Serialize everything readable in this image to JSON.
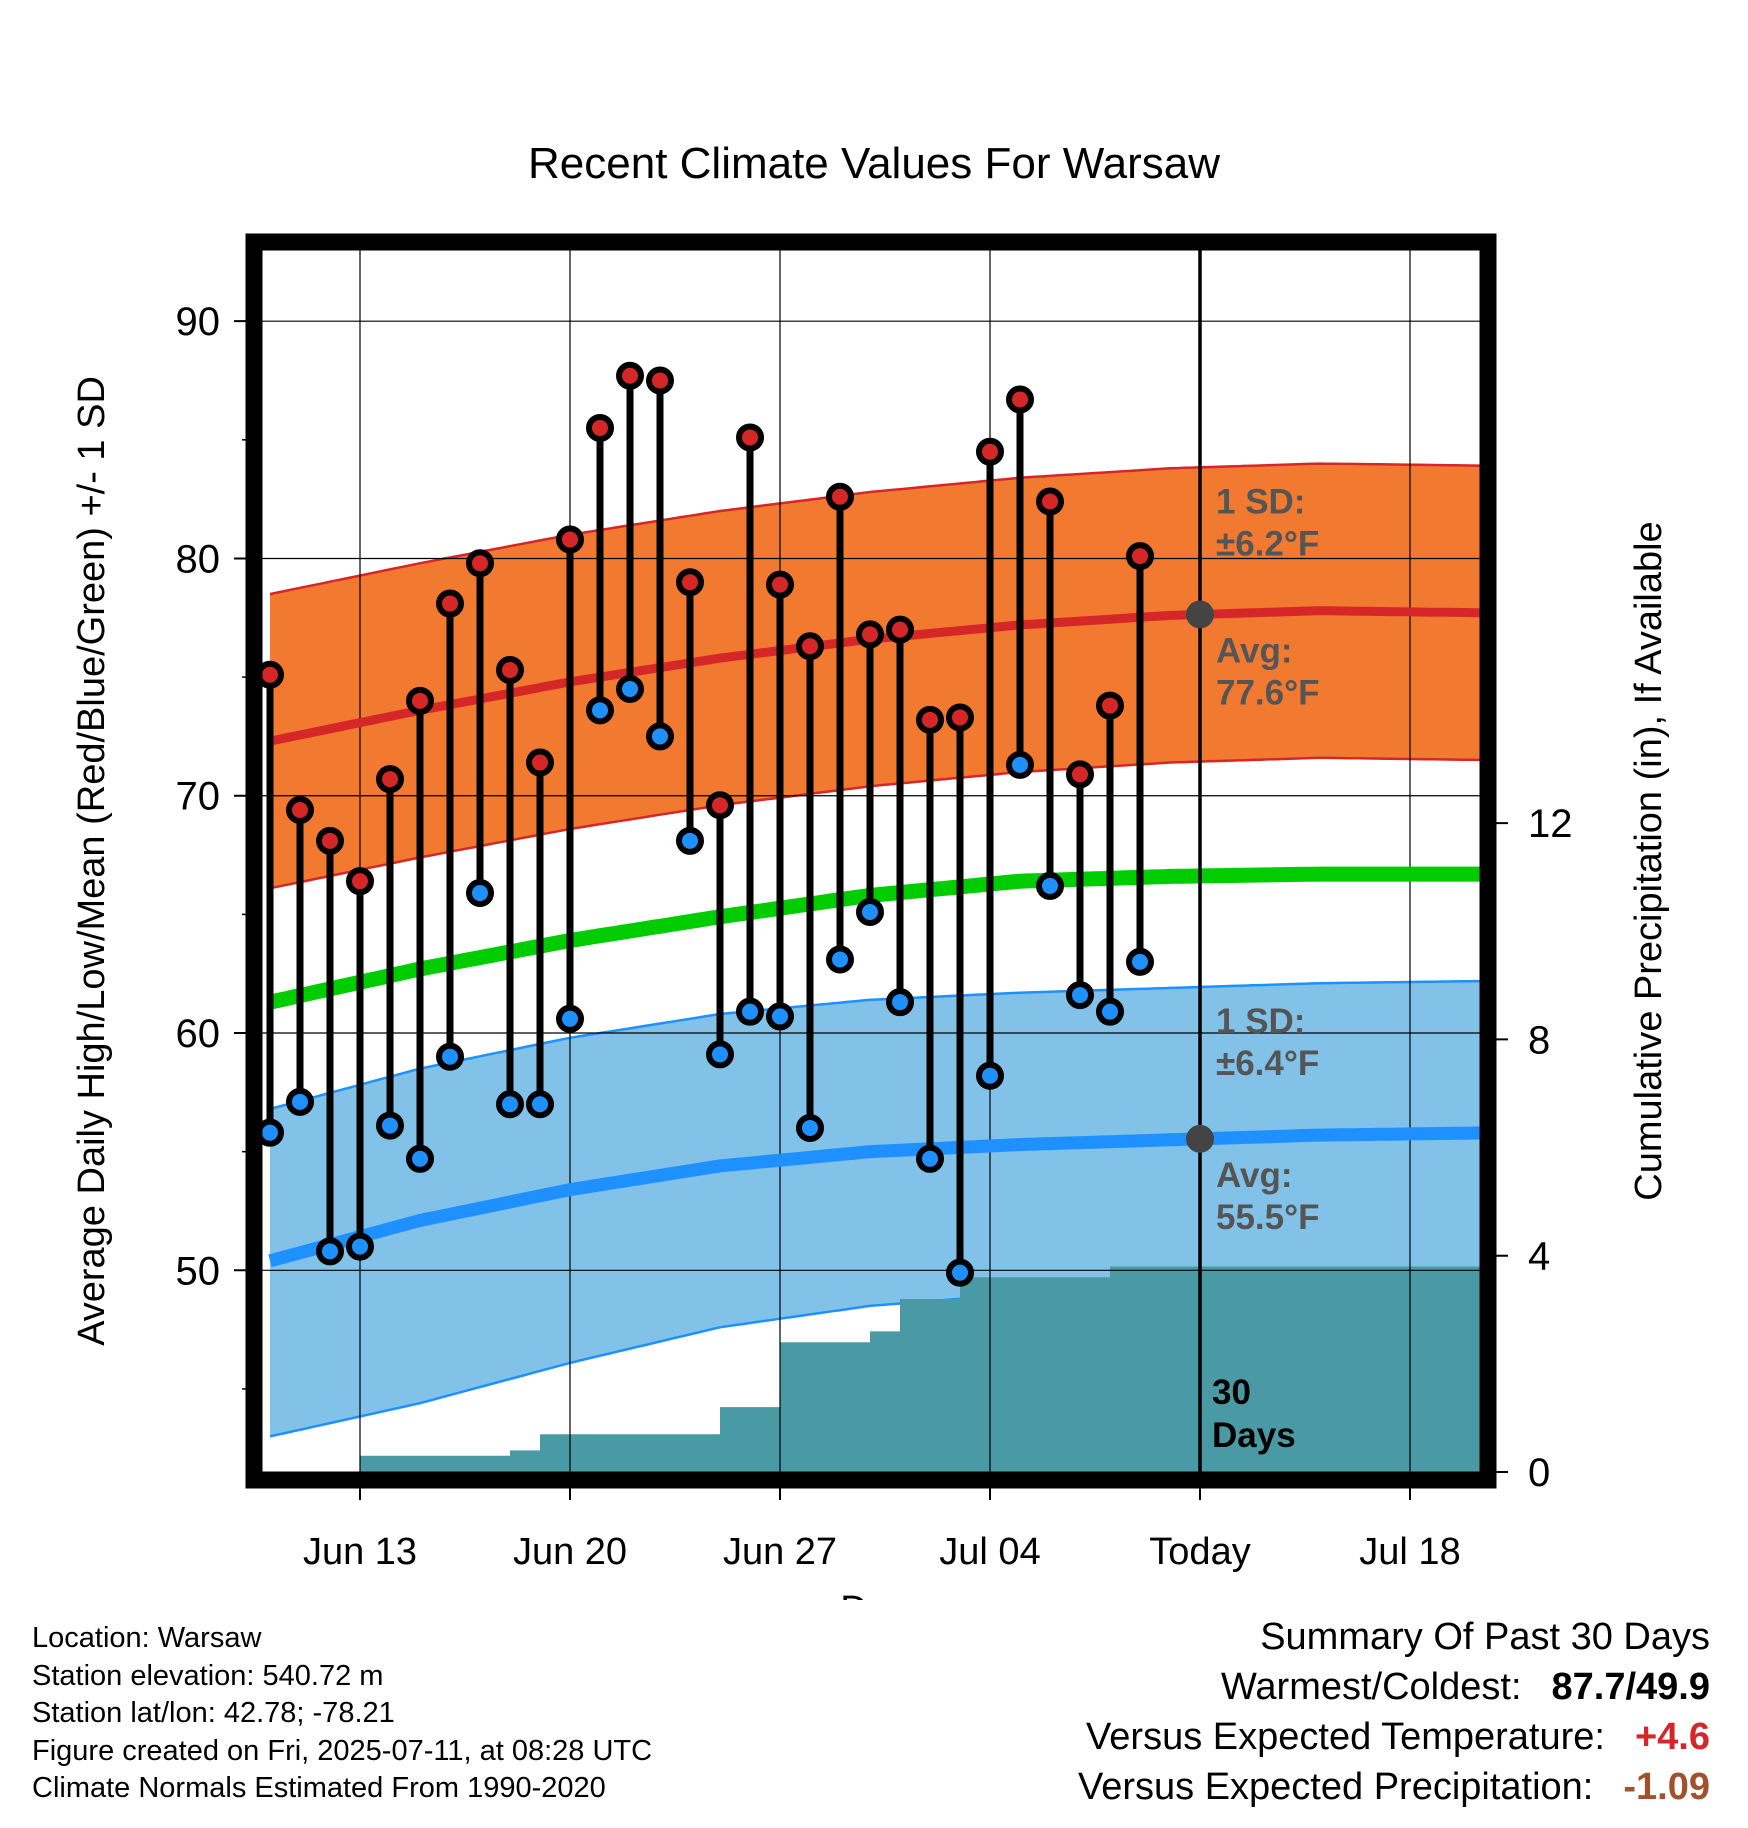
{
  "chart_data": {
    "type": "line",
    "title": "Recent Climate Values For Warsaw",
    "xlabel": "Day",
    "ylabel": "Average Daily High/Low/Mean (Red/Blue/Green) +/- 1 SD",
    "y2label": "Cumulative Precipitation (in), If Available",
    "xlim": [
      0,
      41
    ],
    "ylim": [
      41.5,
      93
    ],
    "y2lim": [
      0,
      22.6
    ],
    "x_ticks": [
      {
        "x": 3,
        "label": "Jun 13"
      },
      {
        "x": 10,
        "label": "Jun 20"
      },
      {
        "x": 17,
        "label": "Jun 27"
      },
      {
        "x": 24,
        "label": "Jul 04"
      },
      {
        "x": 31,
        "label": "Today"
      },
      {
        "x": 38,
        "label": "Jul 18"
      }
    ],
    "y_ticks": [
      50,
      60,
      70,
      80,
      90
    ],
    "y2_ticks": [
      0,
      4,
      8,
      12
    ],
    "grid": true,
    "today_x": 31,
    "today_label_line1": "30",
    "today_label_line2": "Days",
    "normals": {
      "x": [
        0,
        5,
        10,
        15,
        20,
        25,
        30,
        35,
        41
      ],
      "high_avg": [
        72.3,
        73.6,
        74.8,
        75.8,
        76.6,
        77.2,
        77.6,
        77.8,
        77.7
      ],
      "high_sd": 6.2,
      "low_avg": [
        50.4,
        52.1,
        53.4,
        54.4,
        55.0,
        55.3,
        55.5,
        55.7,
        55.8
      ],
      "low_sd": 6.4,
      "low_band_lower": [
        43.0,
        44.4,
        46.1,
        47.6,
        48.5,
        49.0,
        49.3,
        49.6,
        49.8
      ],
      "mean_avg": [
        61.3,
        62.7,
        63.9,
        64.9,
        65.8,
        66.4,
        66.6,
        66.7,
        66.7
      ]
    },
    "series": [
      {
        "name": "High",
        "color": "#d62728",
        "values": [
          75.1,
          69.4,
          68.1,
          66.4,
          70.7,
          74.0,
          78.1,
          79.8,
          75.3,
          71.4,
          80.8,
          85.5,
          87.7,
          87.5,
          79.0,
          69.6,
          85.1,
          78.9,
          76.3,
          82.6,
          76.8,
          77.0,
          73.2,
          73.3,
          84.5,
          86.7,
          82.4,
          70.9,
          73.8,
          80.1
        ]
      },
      {
        "name": "Low",
        "color": "#1e90ff",
        "values": [
          55.8,
          57.1,
          50.8,
          51.0,
          56.1,
          54.7,
          59.0,
          65.9,
          57.0,
          57.0,
          60.6,
          73.6,
          74.5,
          72.5,
          68.1,
          59.1,
          60.9,
          60.7,
          56.0,
          63.1,
          65.1,
          61.3,
          54.7,
          49.9,
          58.2,
          71.3,
          66.2,
          61.6,
          60.9,
          63.0
        ]
      }
    ],
    "precip": {
      "x": [
        0,
        1,
        2,
        3,
        4,
        5,
        6,
        7,
        8,
        9,
        10,
        11,
        12,
        13,
        14,
        15,
        16,
        17,
        18,
        19,
        20,
        21,
        22,
        23,
        24,
        25,
        26,
        27,
        28,
        29,
        30,
        31,
        41
      ],
      "values": [
        0,
        0,
        0,
        0.3,
        0.3,
        0.3,
        0.3,
        0.3,
        0.4,
        0.7,
        0.7,
        0.7,
        0.7,
        0.7,
        0.7,
        1.2,
        1.2,
        2.4,
        2.4,
        2.4,
        2.6,
        3.2,
        3.2,
        3.6,
        3.6,
        3.6,
        3.6,
        3.6,
        3.8,
        3.8,
        3.8,
        3.8,
        3.8
      ]
    },
    "annotations": {
      "high_sd": {
        "line1": "1 SD:",
        "line2": "±6.2°F"
      },
      "high_avg": {
        "line1": "Avg:",
        "line2": "77.6°F"
      },
      "low_sd": {
        "line1": "1 SD:",
        "line2": "±6.4°F"
      },
      "low_avg": {
        "line1": "Avg:",
        "line2": "55.5°F"
      }
    },
    "colors": {
      "high_band": "#f27a30",
      "high_line": "#d62728",
      "low_band": "#82c2e8",
      "low_line": "#1e90ff",
      "mean_line": "#00cc00",
      "precip_fill": "#4a9aa5",
      "annotation_text": "#555555",
      "today_marker": "#444444"
    }
  },
  "footer": {
    "location": "Location: Warsaw",
    "elevation": "Station elevation: 540.72 m",
    "latlon": "Station lat/lon: 42.78; -78.21",
    "created": "Figure created on Fri, 2025-07-11, at 08:28 UTC",
    "normals": "Climate Normals Estimated From 1990-2020"
  },
  "summary": {
    "title": "Summary Of Past 30 Days",
    "warmest_coldest_label": "Warmest/Coldest:",
    "warmest_coldest_value": "87.7/49.9",
    "temp_label": "Versus Expected Temperature:",
    "temp_value": "+4.6",
    "precip_label": "Versus Expected Precipitation:",
    "precip_value": "-1.09"
  }
}
